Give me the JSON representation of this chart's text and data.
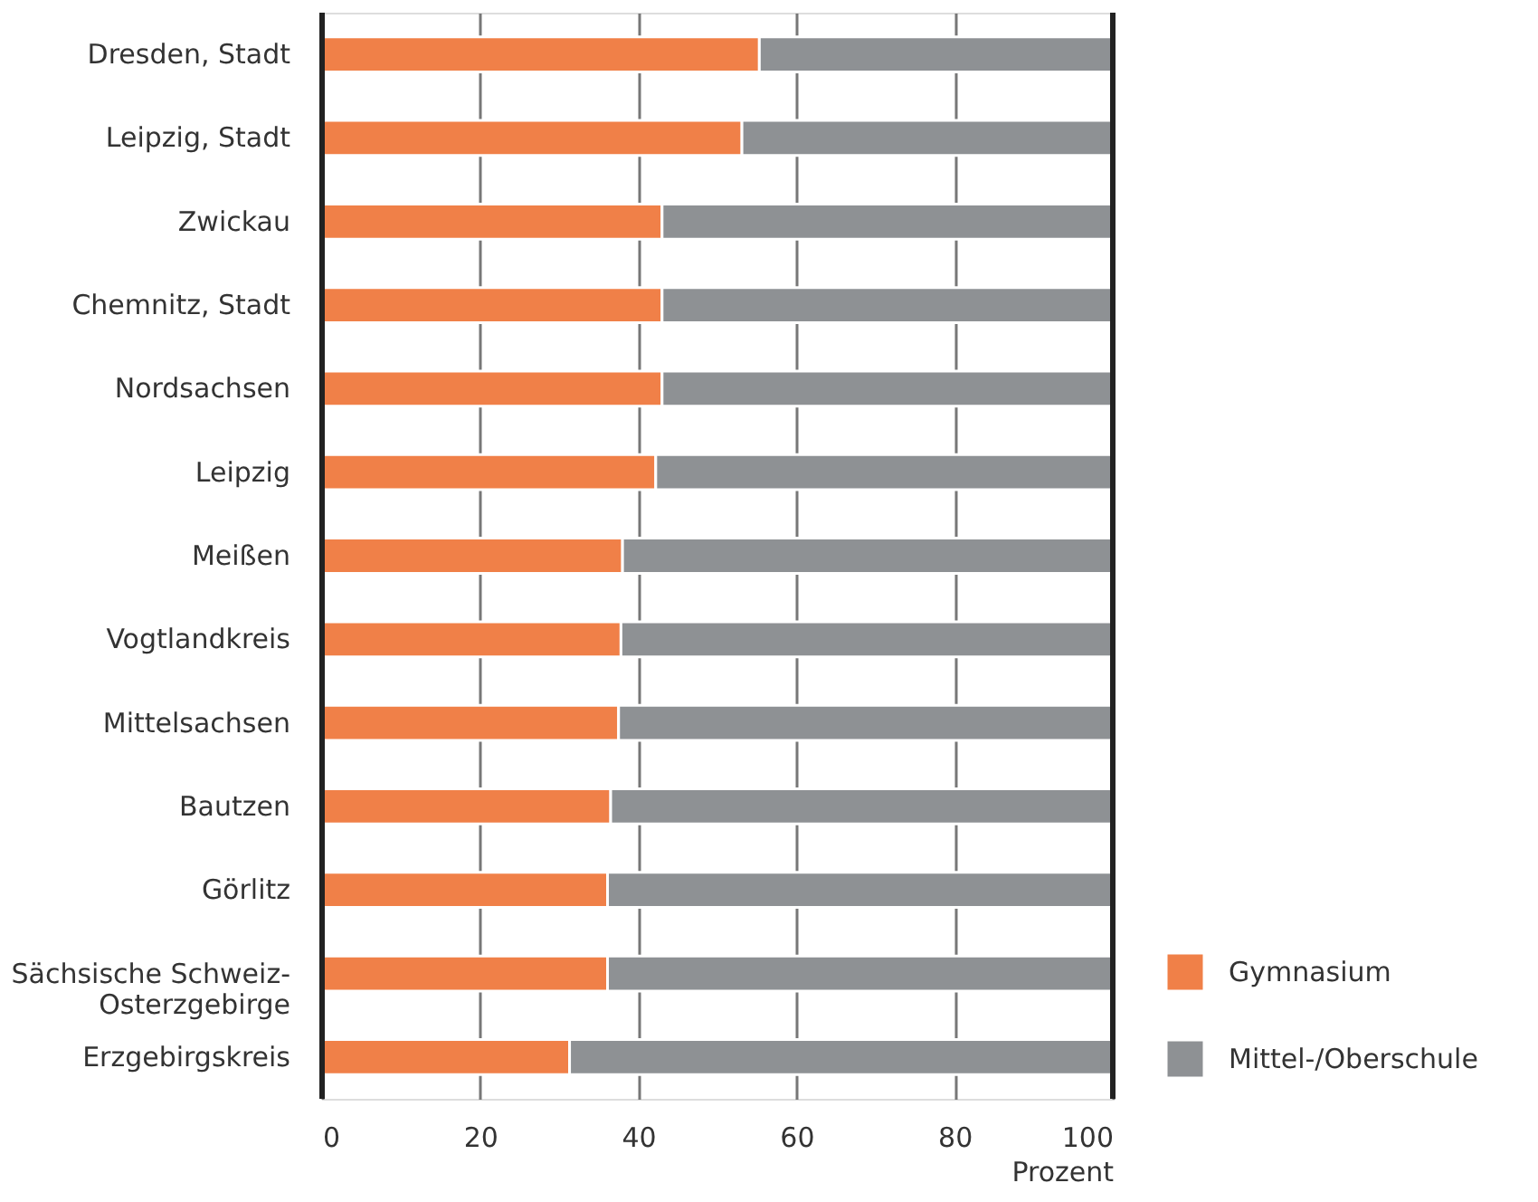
{
  "chart_data": {
    "type": "bar",
    "orientation": "horizontal",
    "stacked": true,
    "categories": [
      "Dresden, Stadt",
      "Leipzig, Stadt",
      "Zwickau",
      "Chemnitz, Stadt",
      "Nordsachsen",
      "Leipzig",
      "Meißen",
      "Vogtlandkreis",
      "Mittelsachsen",
      "Bautzen",
      "Görlitz",
      "Sächsische Schweiz-\nOsterzgebirge",
      "Erzgebirgskreis"
    ],
    "series": [
      {
        "name": "Gymnasium",
        "color": "#f08048",
        "values": [
          55.3,
          53.1,
          43.0,
          43.0,
          43.0,
          42.2,
          38.0,
          37.8,
          37.5,
          36.5,
          36.1,
          36.1,
          31.3
        ]
      },
      {
        "name": "Mittel-/Oberschule",
        "color": "#8e9194",
        "values": [
          44.7,
          46.9,
          57.0,
          57.0,
          57.0,
          57.8,
          62.0,
          62.2,
          62.5,
          63.5,
          63.9,
          63.9,
          68.7
        ]
      }
    ],
    "xlabel": "Prozent",
    "xlim": [
      0,
      100
    ],
    "xticks": [
      0,
      20,
      40,
      60,
      80,
      100
    ],
    "grid": "x",
    "legend": "bottom right"
  }
}
